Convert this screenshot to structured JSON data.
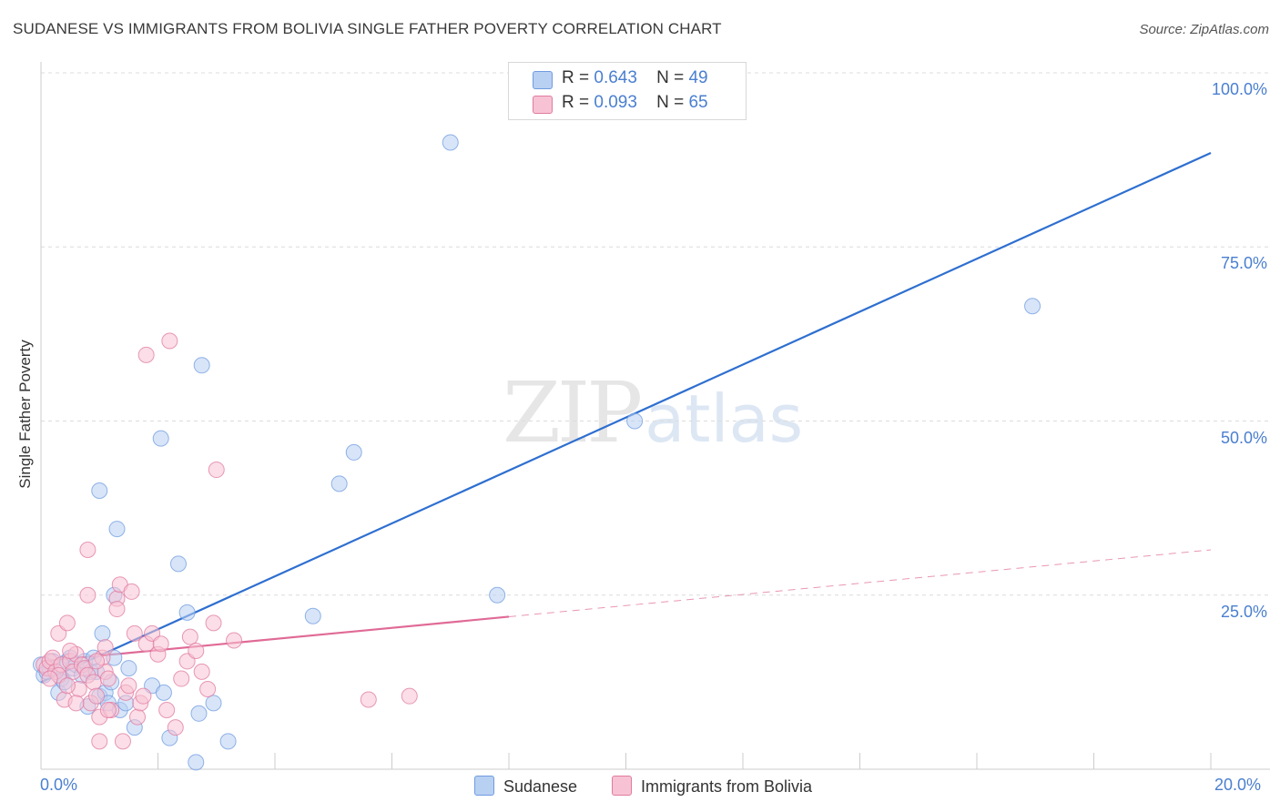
{
  "title": "SUDANESE VS IMMIGRANTS FROM BOLIVIA SINGLE FATHER POVERTY CORRELATION CHART",
  "source": "Source: ZipAtlas.com",
  "watermark": {
    "zip": "ZIP",
    "atlas": "atlas"
  },
  "chart_data": {
    "type": "scatter",
    "title": "SUDANESE VS IMMIGRANTS FROM BOLIVIA SINGLE FATHER POVERTY CORRELATION CHART",
    "xlabel": "",
    "ylabel": "Single Father Poverty",
    "xlim": [
      0,
      20
    ],
    "ylim": [
      0,
      100
    ],
    "x_tick_labels": {
      "left": "0.0%",
      "right": "20.0%"
    },
    "y_ticks": [
      {
        "value": 25,
        "label": "25.0%"
      },
      {
        "value": 50,
        "label": "50.0%"
      },
      {
        "value": 75,
        "label": "75.0%"
      },
      {
        "value": 100,
        "label": "100.0%"
      }
    ],
    "legend": [
      {
        "name": "Sudanese",
        "r_label": "R =",
        "r_value": "0.643",
        "n_label": "N =",
        "n_value": "49",
        "color": "#6f9be0",
        "fill": "#b8d0f2"
      },
      {
        "name": "Immigrants from Bolivia",
        "r_label": "R =",
        "r_value": "0.093",
        "n_label": "N =",
        "n_value": "65",
        "color": "#e07aa0",
        "fill": "#f7c3d4"
      }
    ],
    "series": [
      {
        "name": "Sudanese",
        "color": "#6f9be0",
        "trend": {
          "x0": 0,
          "y0": 12.5,
          "x1": 20,
          "y1": 88.5,
          "solid_to": 20
        },
        "points": [
          [
            0.0,
            15.0
          ],
          [
            0.05,
            13.5
          ],
          [
            0.1,
            14.0
          ],
          [
            0.15,
            14.5
          ],
          [
            0.2,
            15.5
          ],
          [
            0.3,
            11.0
          ],
          [
            0.35,
            13.0
          ],
          [
            0.4,
            12.5
          ],
          [
            0.45,
            15.5
          ],
          [
            0.5,
            16.0
          ],
          [
            0.55,
            14.5
          ],
          [
            0.6,
            15.0
          ],
          [
            0.7,
            13.5
          ],
          [
            0.75,
            15.5
          ],
          [
            0.8,
            9.0
          ],
          [
            0.85,
            14.0
          ],
          [
            0.9,
            16.0
          ],
          [
            0.95,
            14.0
          ],
          [
            1.0,
            10.5
          ],
          [
            1.05,
            19.5
          ],
          [
            1.1,
            11.0
          ],
          [
            1.15,
            9.5
          ],
          [
            1.2,
            12.5
          ],
          [
            1.25,
            16.0
          ],
          [
            1.35,
            8.5
          ],
          [
            1.5,
            14.5
          ],
          [
            1.0,
            40.0
          ],
          [
            1.3,
            34.5
          ],
          [
            1.25,
            25.0
          ],
          [
            1.45,
            9.5
          ],
          [
            1.6,
            6.0
          ],
          [
            1.9,
            12.0
          ],
          [
            2.05,
            47.5
          ],
          [
            2.1,
            11.0
          ],
          [
            2.2,
            4.5
          ],
          [
            2.35,
            29.5
          ],
          [
            2.5,
            22.5
          ],
          [
            2.65,
            1.0
          ],
          [
            2.7,
            8.0
          ],
          [
            2.75,
            58.0
          ],
          [
            2.95,
            9.5
          ],
          [
            3.2,
            4.0
          ],
          [
            4.65,
            22.0
          ],
          [
            5.1,
            41.0
          ],
          [
            5.35,
            45.5
          ],
          [
            7.0,
            90.0
          ],
          [
            7.8,
            25.0
          ],
          [
            10.15,
            50.0
          ],
          [
            16.95,
            66.5
          ]
        ]
      },
      {
        "name": "Immigrants from Bolivia",
        "color": "#e07aa0",
        "trend": {
          "x0": 0,
          "y0": 15.5,
          "x1": 20,
          "y1": 31.5,
          "solid_to": 8
        },
        "points": [
          [
            0.05,
            15.0
          ],
          [
            0.1,
            14.5
          ],
          [
            0.15,
            15.5
          ],
          [
            0.2,
            16.0
          ],
          [
            0.25,
            14.0
          ],
          [
            0.3,
            19.5
          ],
          [
            0.35,
            15.0
          ],
          [
            0.4,
            10.0
          ],
          [
            0.45,
            21.0
          ],
          [
            0.5,
            15.5
          ],
          [
            0.55,
            14.0
          ],
          [
            0.6,
            16.5
          ],
          [
            0.65,
            11.5
          ],
          [
            0.7,
            15.0
          ],
          [
            0.75,
            14.5
          ],
          [
            0.8,
            13.5
          ],
          [
            0.85,
            9.5
          ],
          [
            0.9,
            12.5
          ],
          [
            0.95,
            10.5
          ],
          [
            1.0,
            7.5
          ],
          [
            1.05,
            16.0
          ],
          [
            1.1,
            14.0
          ],
          [
            1.15,
            13.0
          ],
          [
            1.2,
            8.5
          ],
          [
            0.8,
            31.5
          ],
          [
            0.8,
            25.0
          ],
          [
            1.0,
            4.0
          ],
          [
            1.15,
            8.5
          ],
          [
            1.3,
            24.5
          ],
          [
            1.3,
            23.0
          ],
          [
            1.35,
            26.5
          ],
          [
            1.4,
            4.0
          ],
          [
            1.45,
            11.0
          ],
          [
            1.5,
            12.0
          ],
          [
            1.55,
            25.5
          ],
          [
            1.6,
            19.5
          ],
          [
            1.65,
            7.5
          ],
          [
            1.7,
            9.5
          ],
          [
            1.75,
            10.5
          ],
          [
            1.8,
            18.0
          ],
          [
            1.9,
            19.5
          ],
          [
            2.0,
            16.5
          ],
          [
            2.05,
            18.0
          ],
          [
            2.15,
            8.5
          ],
          [
            1.8,
            59.5
          ],
          [
            2.2,
            61.5
          ],
          [
            2.3,
            6.0
          ],
          [
            2.4,
            13.0
          ],
          [
            2.5,
            15.5
          ],
          [
            2.55,
            19.0
          ],
          [
            2.65,
            17.0
          ],
          [
            2.75,
            14.0
          ],
          [
            2.85,
            11.5
          ],
          [
            2.95,
            21.0
          ],
          [
            3.0,
            43.0
          ],
          [
            3.3,
            18.5
          ],
          [
            5.6,
            10.0
          ],
          [
            6.3,
            10.5
          ],
          [
            0.5,
            17.0
          ],
          [
            0.6,
            9.5
          ],
          [
            0.95,
            15.5
          ],
          [
            1.1,
            17.5
          ],
          [
            0.3,
            13.5
          ],
          [
            0.15,
            13.0
          ],
          [
            0.45,
            12.0
          ]
        ]
      }
    ]
  }
}
